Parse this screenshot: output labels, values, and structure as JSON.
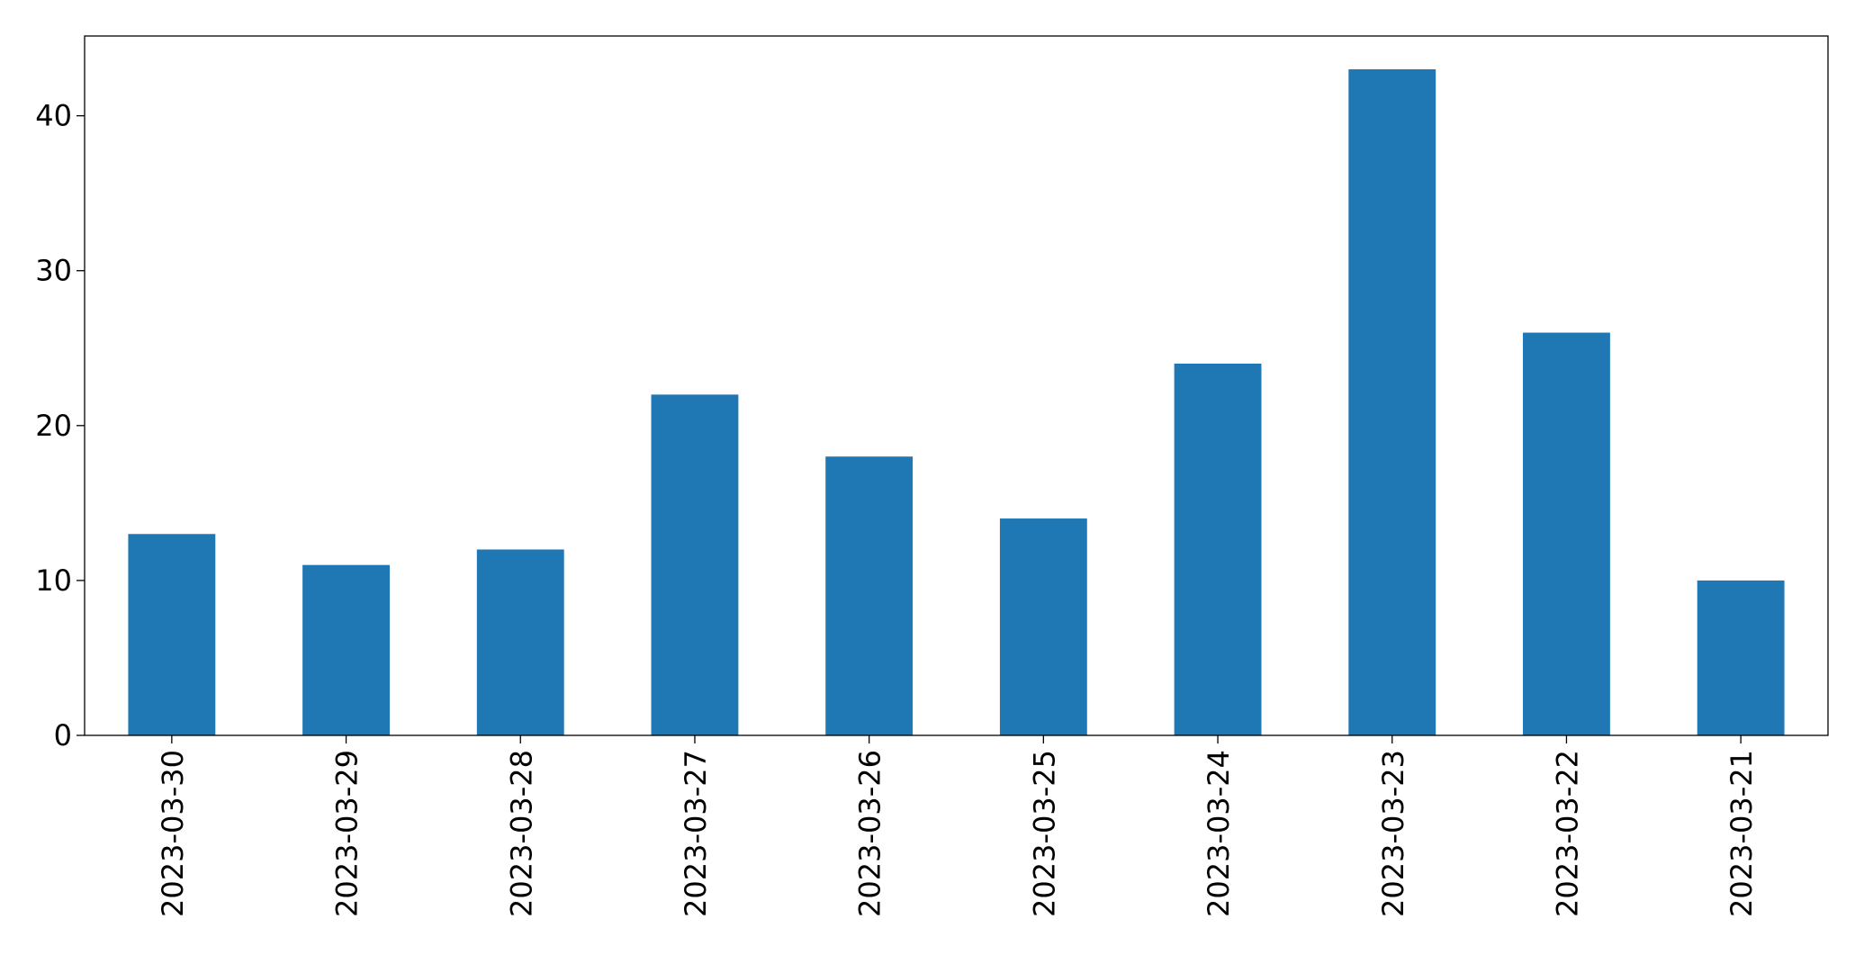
{
  "chart_data": {
    "type": "bar",
    "categories": [
      "2023-03-30",
      "2023-03-29",
      "2023-03-28",
      "2023-03-27",
      "2023-03-26",
      "2023-03-25",
      "2023-03-24",
      "2023-03-23",
      "2023-03-22",
      "2023-03-21"
    ],
    "values": [
      13,
      11,
      12,
      22,
      18,
      14,
      24,
      43,
      26,
      10
    ],
    "color": "#1f77b4",
    "ylim": [
      0,
      45.15
    ],
    "yticks": [
      0,
      10,
      20,
      30,
      40
    ],
    "grid": false
  }
}
